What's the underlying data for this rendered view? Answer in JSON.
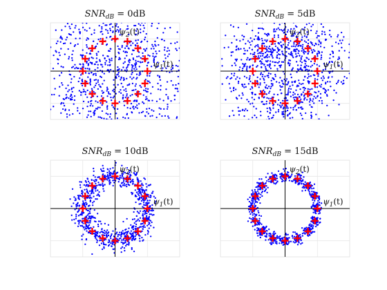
{
  "figure": {
    "background": "#ffffff",
    "axes_color": "#000000",
    "grid_color": "#e6e6e6"
  },
  "chart_data": [
    {
      "type": "scatter",
      "title": {
        "snr": "SNR",
        "sub": "dB",
        "rest": " = 0dB"
      },
      "snr_db": 0,
      "xlim": [
        -2.0,
        2.0
      ],
      "ylim": [
        -1.5,
        1.5
      ],
      "xticks": [
        -1,
        0,
        1
      ],
      "yticks": [
        -1,
        0,
        1
      ],
      "grid": true,
      "axis_labels": {
        "x": {
          "psi": "ψ",
          "sub": "1",
          "arg": "(t)"
        },
        "y": {
          "psi": "ψ",
          "sub": "2",
          "arg": "(t)"
        }
      },
      "received": {
        "color": "#0000ff",
        "count": 1100,
        "noise_std": 1.0
      },
      "constellation": {
        "color": "#ff0000",
        "marker": "plus",
        "points": 16,
        "radius": 1.0,
        "x": [
          1.0,
          0.924,
          0.707,
          0.383,
          0.0,
          -0.383,
          -0.707,
          -0.924,
          -1.0,
          -0.924,
          -0.707,
          -0.383,
          0.0,
          0.383,
          0.707,
          0.924
        ],
        "y": [
          0.0,
          0.383,
          0.707,
          0.924,
          1.0,
          0.924,
          0.707,
          0.383,
          0.0,
          -0.383,
          -0.707,
          -0.924,
          -1.0,
          -0.924,
          -0.707,
          -0.383
        ]
      }
    },
    {
      "type": "scatter",
      "title": {
        "snr": "SNR",
        "sub": "dB",
        "rest": " = 5dB"
      },
      "snr_db": 5,
      "xlim": [
        -2.0,
        2.0
      ],
      "ylim": [
        -1.5,
        1.5
      ],
      "xticks": [
        -1,
        0,
        1
      ],
      "yticks": [
        -1,
        0,
        1
      ],
      "grid": true,
      "axis_labels": {
        "x": {
          "psi": "ψ",
          "sub": "1",
          "arg": "(t)"
        },
        "y": {
          "psi": "ψ",
          "sub": "2",
          "arg": "(t)"
        }
      },
      "received": {
        "color": "#0000ff",
        "count": 1000,
        "noise_std": 0.56
      },
      "constellation": {
        "color": "#ff0000",
        "marker": "plus",
        "points": 16,
        "radius": 1.0,
        "x": [
          1.0,
          0.924,
          0.707,
          0.383,
          0.0,
          -0.383,
          -0.707,
          -0.924,
          -1.0,
          -0.924,
          -0.707,
          -0.383,
          0.0,
          0.383,
          0.707,
          0.924
        ],
        "y": [
          0.0,
          0.383,
          0.707,
          0.924,
          1.0,
          0.924,
          0.707,
          0.383,
          0.0,
          -0.383,
          -0.707,
          -0.924,
          -1.0,
          -0.924,
          -0.707,
          -0.383
        ]
      }
    },
    {
      "type": "scatter",
      "title": {
        "snr": "SNR",
        "sub": "dB",
        "rest": " = 10dB"
      },
      "snr_db": 10,
      "xlim": [
        -2.0,
        2.0
      ],
      "ylim": [
        -1.5,
        1.5
      ],
      "xticks": [
        -1,
        0,
        1
      ],
      "yticks": [
        -1,
        0,
        1
      ],
      "grid": true,
      "axis_labels": {
        "x": {
          "psi": "ψ",
          "sub": "1",
          "arg": "(t)"
        },
        "y": {
          "psi": "ψ",
          "sub": "2",
          "arg": "(t)"
        }
      },
      "received": {
        "color": "#0000ff",
        "count": 900,
        "noise_std": 0.17
      },
      "constellation": {
        "color": "#ff0000",
        "marker": "plus",
        "points": 16,
        "radius": 1.0,
        "x": [
          1.0,
          0.924,
          0.707,
          0.383,
          0.0,
          -0.383,
          -0.707,
          -0.924,
          -1.0,
          -0.924,
          -0.707,
          -0.383,
          0.0,
          0.383,
          0.707,
          0.924
        ],
        "y": [
          0.0,
          0.383,
          0.707,
          0.924,
          1.0,
          0.924,
          0.707,
          0.383,
          0.0,
          -0.383,
          -0.707,
          -0.924,
          -1.0,
          -0.924,
          -0.707,
          -0.383
        ]
      }
    },
    {
      "type": "scatter",
      "title": {
        "snr": "SNR",
        "sub": "dB",
        "rest": " = 15dB"
      },
      "snr_db": 15,
      "xlim": [
        -2.0,
        2.0
      ],
      "ylim": [
        -1.5,
        1.5
      ],
      "xticks": [
        -1,
        0,
        1
      ],
      "yticks": [
        -1,
        0,
        1
      ],
      "grid": true,
      "axis_labels": {
        "x": {
          "psi": "ψ",
          "sub": "1",
          "arg": "(t)"
        },
        "y": {
          "psi": "ψ",
          "sub": "2",
          "arg": "(t)"
        }
      },
      "received": {
        "color": "#0000ff",
        "count": 900,
        "noise_std": 0.085
      },
      "constellation": {
        "color": "#ff0000",
        "marker": "plus",
        "points": 16,
        "radius": 1.0,
        "x": [
          1.0,
          0.924,
          0.707,
          0.383,
          0.0,
          -0.383,
          -0.707,
          -0.924,
          -1.0,
          -0.924,
          -0.707,
          -0.383,
          0.0,
          0.383,
          0.707,
          0.924
        ],
        "y": [
          0.0,
          0.383,
          0.707,
          0.924,
          1.0,
          0.924,
          0.707,
          0.383,
          0.0,
          -0.383,
          -0.707,
          -0.924,
          -1.0,
          -0.924,
          -0.707,
          -0.383
        ]
      }
    }
  ]
}
